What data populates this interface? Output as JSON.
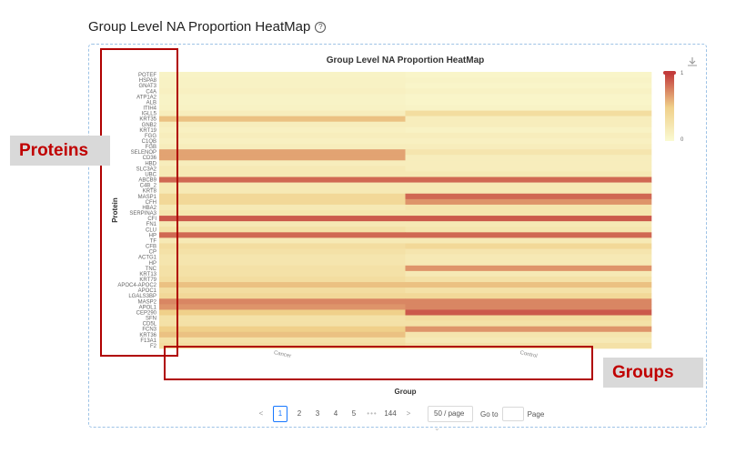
{
  "page": {
    "title": "Group Level NA Proportion HeatMap",
    "help_icon": "question-circle-icon",
    "download_icon": "download-icon"
  },
  "annotations": {
    "proteins": "Proteins",
    "groups": "Groups",
    "color": "#c00000"
  },
  "chart_data": {
    "type": "heatmap",
    "title": "Group Level NA Proportion HeatMap",
    "xlabel": "Group",
    "ylabel": "Protein",
    "x": [
      "Cancer",
      "Control"
    ],
    "y": [
      "POTEF",
      "HSPA8",
      "GNAT3",
      "C4A",
      "ATP1A2",
      "ALB",
      "ITIH4",
      "IGLL5",
      "KRT35",
      "GNB2",
      "KRT19",
      "FGG",
      "C1QB",
      "FGB",
      "SELENOP",
      "CD36",
      "HBD",
      "SLC3A2",
      "UBC",
      "ABCB9",
      "C4B_2",
      "KRT8",
      "MASP1",
      "CFH",
      "HBA2",
      "SERPINA3",
      "CFI",
      "FN1",
      "CLU",
      "HP",
      "TF",
      "CFB",
      "CP",
      "ACTG1",
      "HP",
      "TNC",
      "KRT13",
      "KRT79",
      "APOC4-APOC2",
      "APOC1",
      "LGALS3BP",
      "MASP2",
      "APOL1",
      "CEP290",
      "SFN",
      "CD5L",
      "FCN3",
      "KRT36",
      "F13A1",
      "F2"
    ],
    "values": [
      [
        0.08,
        0.06
      ],
      [
        0.1,
        0.08
      ],
      [
        0.1,
        0.06
      ],
      [
        0.12,
        0.1
      ],
      [
        0.08,
        0.06
      ],
      [
        0.08,
        0.06
      ],
      [
        0.1,
        0.08
      ],
      [
        0.15,
        0.35
      ],
      [
        0.55,
        0.15
      ],
      [
        0.15,
        0.15
      ],
      [
        0.12,
        0.1
      ],
      [
        0.15,
        0.15
      ],
      [
        0.12,
        0.12
      ],
      [
        0.15,
        0.15
      ],
      [
        0.65,
        0.25
      ],
      [
        0.65,
        0.15
      ],
      [
        0.15,
        0.15
      ],
      [
        0.2,
        0.15
      ],
      [
        0.2,
        0.2
      ],
      [
        0.85,
        0.85
      ],
      [
        0.2,
        0.2
      ],
      [
        0.2,
        0.2
      ],
      [
        0.4,
        0.85
      ],
      [
        0.4,
        0.7
      ],
      [
        0.2,
        0.25
      ],
      [
        0.25,
        0.25
      ],
      [
        0.9,
        0.9
      ],
      [
        0.2,
        0.2
      ],
      [
        0.3,
        0.25
      ],
      [
        0.85,
        0.85
      ],
      [
        0.2,
        0.2
      ],
      [
        0.35,
        0.4
      ],
      [
        0.3,
        0.25
      ],
      [
        0.25,
        0.2
      ],
      [
        0.25,
        0.2
      ],
      [
        0.3,
        0.7
      ],
      [
        0.3,
        0.2
      ],
      [
        0.35,
        0.3
      ],
      [
        0.55,
        0.55
      ],
      [
        0.35,
        0.3
      ],
      [
        0.4,
        0.4
      ],
      [
        0.75,
        0.75
      ],
      [
        0.7,
        0.75
      ],
      [
        0.5,
        0.9
      ],
      [
        0.3,
        0.35
      ],
      [
        0.3,
        0.3
      ],
      [
        0.5,
        0.7
      ],
      [
        0.55,
        0.25
      ],
      [
        0.3,
        0.2
      ],
      [
        0.35,
        0.3
      ]
    ],
    "color_scale": {
      "min": 0,
      "max": 1,
      "low_color": "#fafad2",
      "mid_color": "#f0d08a",
      "high_color": "#c23b3b"
    },
    "legend": {
      "min_label": "0",
      "max_label": "1",
      "position": "right"
    }
  },
  "pagination": {
    "prev": "<",
    "pages": [
      "1",
      "2",
      "3",
      "4",
      "5"
    ],
    "ellipsis": "•••",
    "last": "144",
    "next": ">",
    "page_size": "50 / page",
    "goto_label": "Go to",
    "page_label": "Page",
    "current": "1"
  }
}
